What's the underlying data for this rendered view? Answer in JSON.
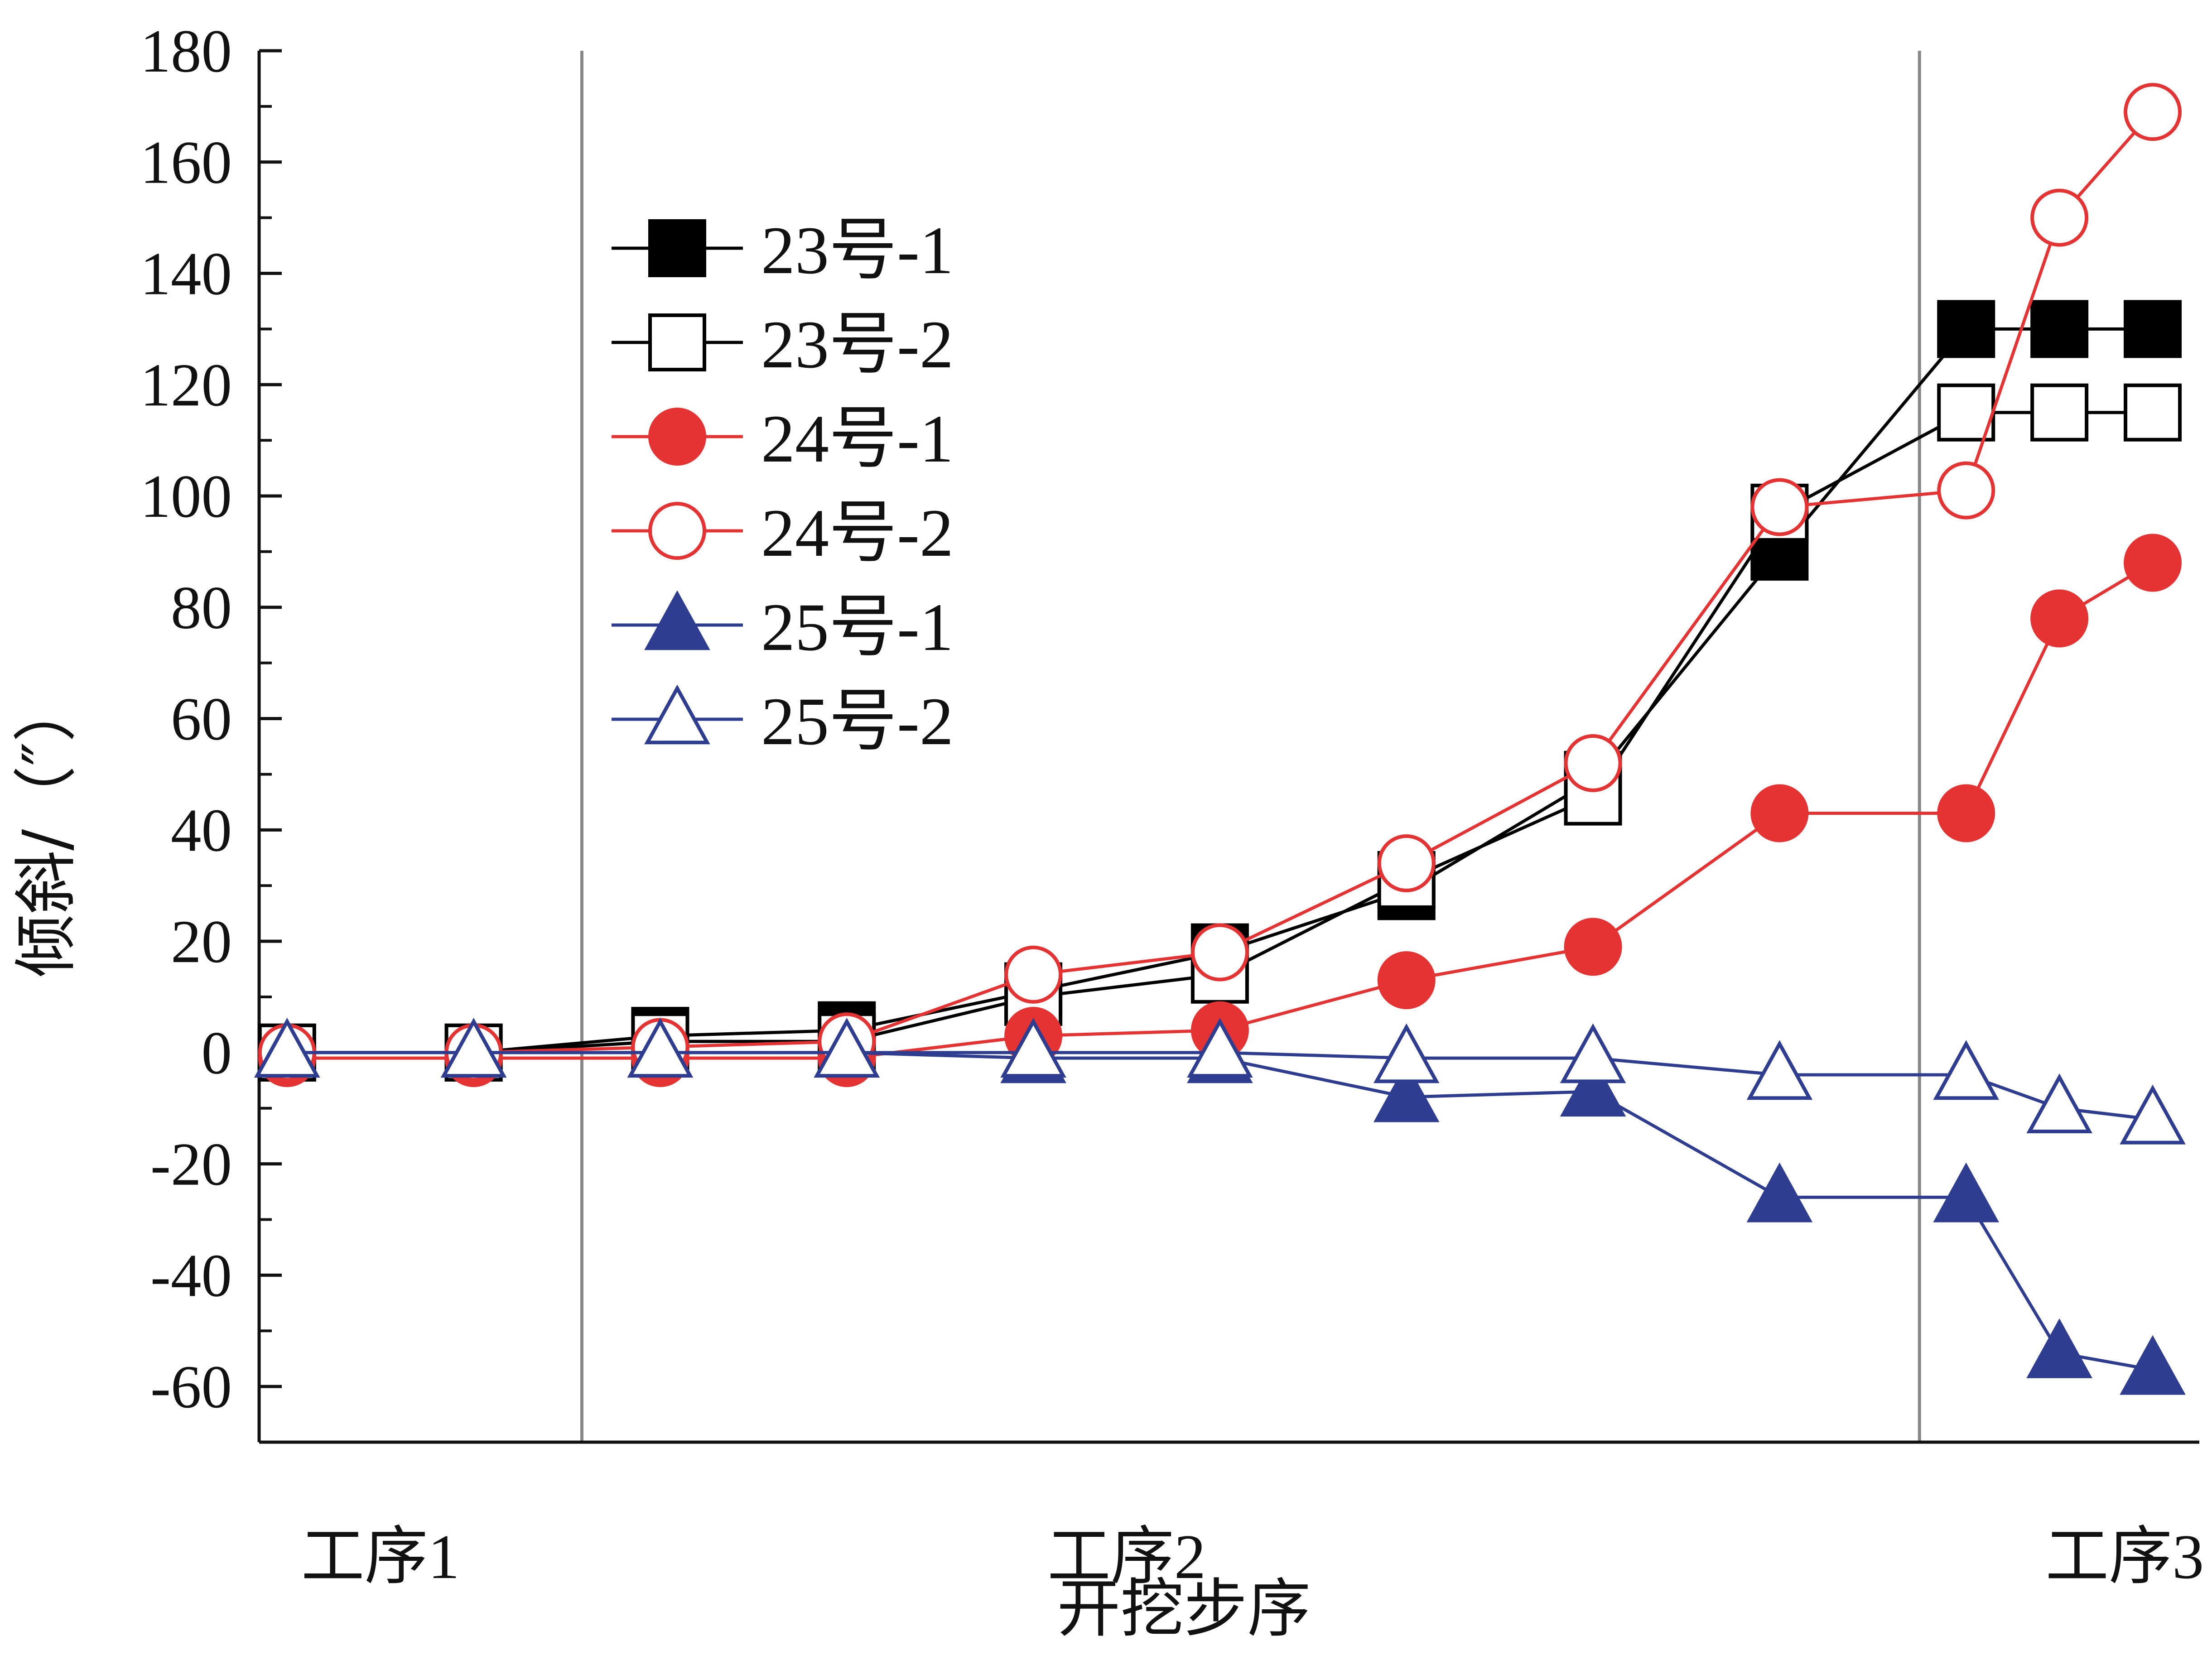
{
  "chart_data": {
    "type": "line",
    "ylabel": "倾斜/（″）",
    "xlabel": "开挖步序",
    "ylim": [
      -70,
      180
    ],
    "yticks": [
      -60,
      -40,
      -20,
      0,
      20,
      40,
      60,
      80,
      100,
      120,
      140,
      160,
      180
    ],
    "xlim": [
      0.85,
      11.25
    ],
    "stages": [
      {
        "label": "工序1",
        "x": 1.5
      },
      {
        "label": "工序2",
        "x": 5.5
      },
      {
        "label": "工序3",
        "x": 10.85
      }
    ],
    "stage_dividers": [
      2.58,
      9.75
    ],
    "x": [
      1,
      2,
      3,
      4,
      5,
      6,
      7,
      8,
      9,
      10,
      10.5,
      11
    ],
    "series": [
      {
        "name": "23号-1",
        "color": "#000000",
        "marker": "square",
        "filled": true,
        "values": [
          0,
          0,
          3,
          4,
          11,
          18,
          29,
          49,
          90,
          130,
          130,
          130
        ]
      },
      {
        "name": "23号-2",
        "color": "#000000",
        "marker": "square",
        "filled": false,
        "values": [
          0,
          0,
          2,
          2,
          10,
          14,
          31,
          46,
          97,
          115,
          115,
          115
        ]
      },
      {
        "name": "24号-1",
        "color": "#e53333",
        "marker": "circle",
        "filled": true,
        "values": [
          -1,
          -1,
          -1,
          -1,
          3,
          4,
          13,
          19,
          43,
          43,
          78,
          88
        ]
      },
      {
        "name": "24号-2",
        "color": "#e53333",
        "marker": "circle",
        "filled": false,
        "values": [
          0,
          0,
          1,
          2,
          14,
          18,
          34,
          52,
          98,
          101,
          150,
          169
        ]
      },
      {
        "name": "25号-1",
        "color": "#2e3d8f",
        "marker": "triangle",
        "filled": true,
        "values": [
          0,
          0,
          0,
          0,
          -1,
          -1,
          -8,
          -7,
          -26,
          -26,
          -54,
          -57
        ]
      },
      {
        "name": "25号-2",
        "color": "#2e3d8f",
        "marker": "triangle",
        "filled": false,
        "values": [
          0,
          0,
          0,
          0,
          0,
          0,
          -1,
          -1,
          -4,
          -4,
          -10,
          -12
        ]
      }
    ],
    "legend_position": "upper-left",
    "grid": false
  }
}
